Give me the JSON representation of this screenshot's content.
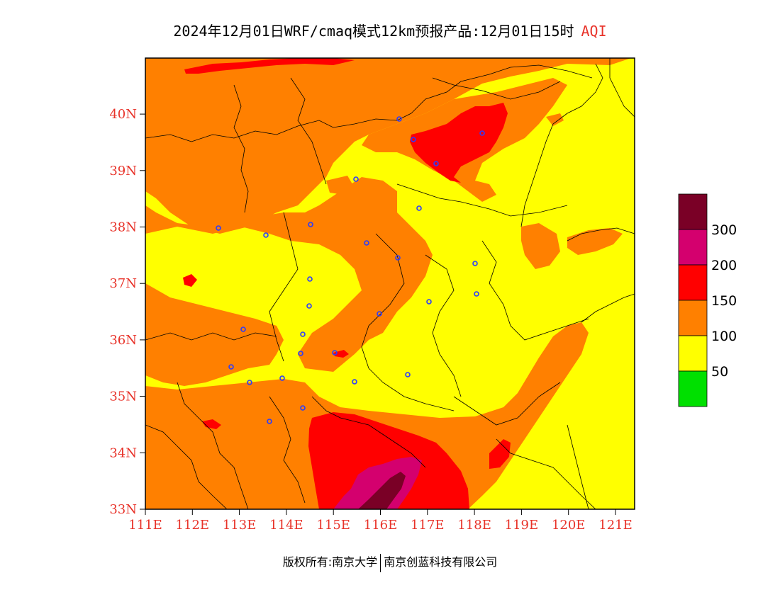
{
  "title": {
    "text": "2024年12月01日WRF/cmaq模式12km预报产品:12月01日15时",
    "aqi": "AQI"
  },
  "axes": {
    "x_ticks": [
      "111E",
      "112E",
      "113E",
      "114E",
      "115E",
      "116E",
      "117E",
      "118E",
      "119E",
      "120E",
      "121E"
    ],
    "y_ticks": [
      "33N",
      "34N",
      "35N",
      "36N",
      "37N",
      "38N",
      "39N",
      "40N"
    ],
    "label_color": "#e8332a"
  },
  "legend": {
    "levels": [
      {
        "color": "#7a0026"
      },
      {
        "color": "#d4006e"
      },
      {
        "color": "#ff0000"
      },
      {
        "color": "#ff8000"
      },
      {
        "color": "#ffff00"
      },
      {
        "color": "#00e000"
      }
    ],
    "labels": [
      "300",
      "200",
      "150",
      "100",
      "50"
    ]
  },
  "footer": {
    "left": "版权所有:南京大学",
    "right": "南京创蓝科技有限公司"
  }
}
